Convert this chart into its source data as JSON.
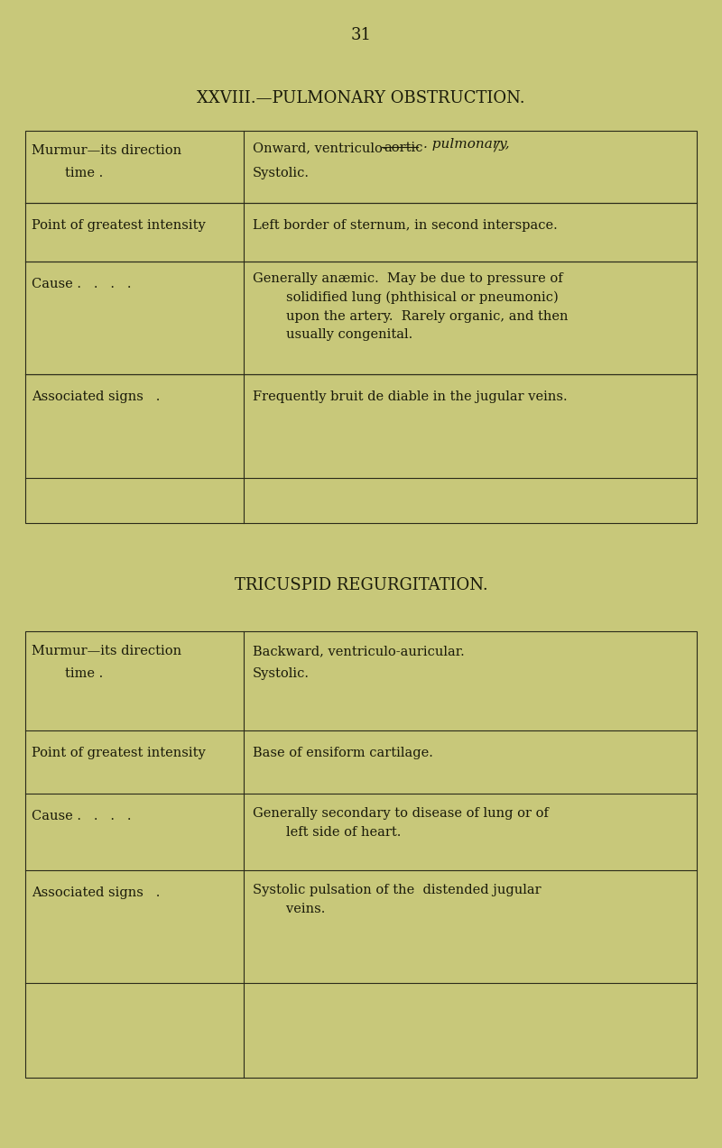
{
  "bg_color": "#c8c87a",
  "page_number": "31",
  "title1": "XXVIII.—PULMONARY OBSTRUCTION.",
  "title2": "TRICUSPID REGURGITATION.",
  "table1_rows": [
    {
      "left": "Murmur—its direction\n        time .",
      "right": "Onward, ventriculo-̶a̶o̶r̶t̶i̶c̶. pulmonary,\nSystolic."
    },
    {
      "left": "Point of greatest intensity",
      "right": "Left border of sternum, in second interspace."
    },
    {
      "left": "Cause .   .   .   .",
      "right": "Generally anæmic.  May be due to pressure of\n        solidified lung (phthisical or pneumonic)\n        upon the artery.  Rarely organic, and then\n        usually congenital."
    },
    {
      "left": "Associated signs   .",
      "right": "Frequently bruit de diable in the jugular veins."
    }
  ],
  "table2_rows": [
    {
      "left": "Murmur—its direction\n        time .",
      "right": "Backward, ventriculo-auricular.\nSystolic."
    },
    {
      "left": "Point of greatest intensity",
      "right": "Base of ensiform cartilage."
    },
    {
      "left": "Cause .   .   .   .",
      "right": "Generally secondary to disease of lung or of\n        left side of heart."
    },
    {
      "left": "Associated signs   .",
      "right": "Systolic pulsation of the distended jugular\n        veins."
    }
  ],
  "text_color": "#1a1a0a",
  "line_color": "#2a2a1a",
  "font_size_title": 13,
  "font_size_body": 10.5,
  "font_size_page": 13
}
